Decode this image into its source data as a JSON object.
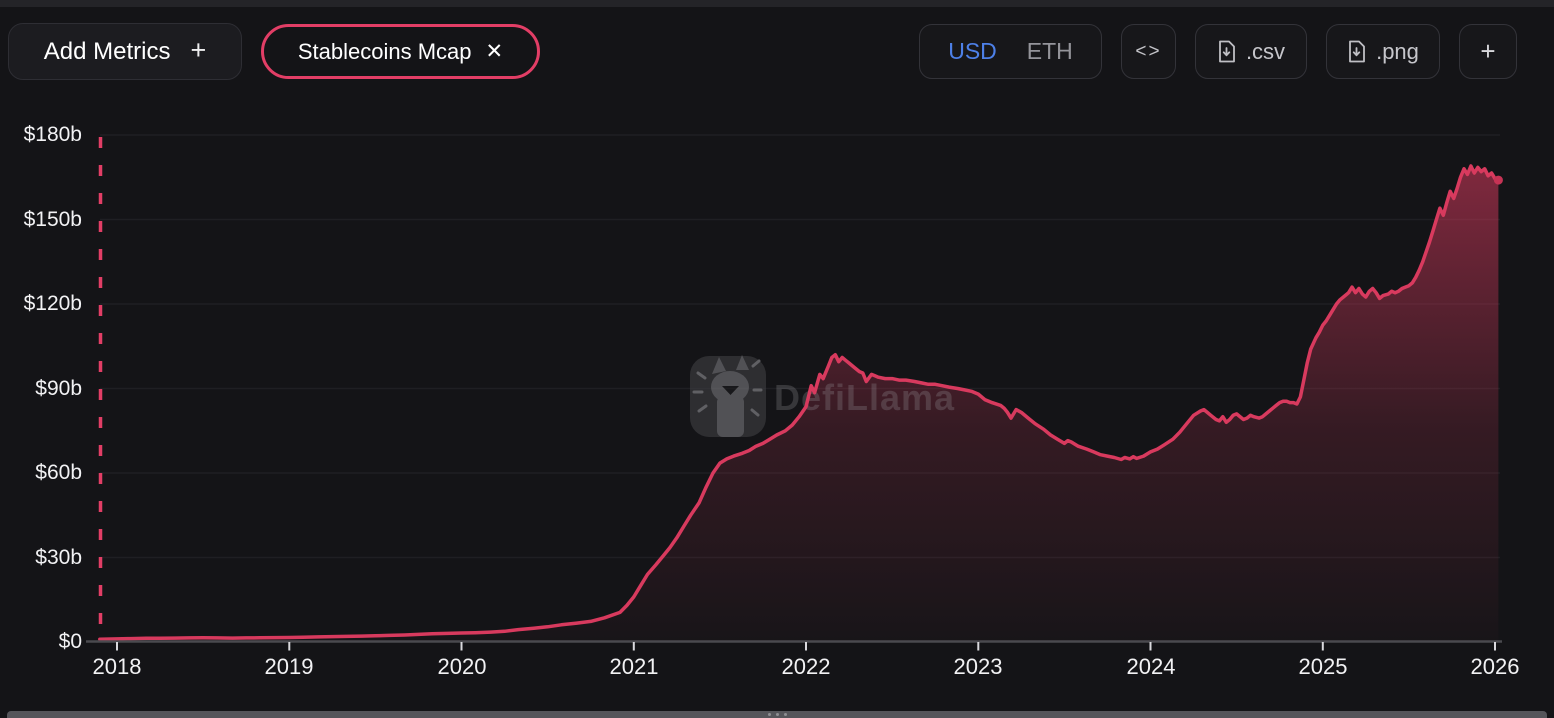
{
  "header": {
    "add_metrics": {
      "label": "Add Metrics",
      "plus": "+"
    },
    "metric_pill": {
      "label": "Stablecoins Mcap",
      "close": "✕"
    },
    "currency_toggle": {
      "options": [
        "USD",
        "ETH"
      ],
      "selected": "USD"
    },
    "embed_button": {
      "label": "<>"
    },
    "csv_button": {
      "label": ".csv"
    },
    "png_button": {
      "label": ".png"
    },
    "add_chart_button": {
      "label": "+"
    }
  },
  "watermark": {
    "text": "DefiLlama"
  },
  "colors": {
    "background": "#141417",
    "accent_pink": "#e23e66",
    "line": "#d83a5e",
    "usd_blue": "#4d80e8",
    "axis_text": "#f2f2f4",
    "muted_text": "#c6c6cb",
    "gridline": "#1f1f23",
    "axis_line": "#4a4a4f"
  },
  "chart_data": {
    "type": "area",
    "title": "Stablecoins Mcap",
    "currency": "USD",
    "legend": "none",
    "grid": true,
    "x_axis": {
      "tick_labels": [
        "2018",
        "2019",
        "2020",
        "2021",
        "2022",
        "2023",
        "2024",
        "2025",
        "2026"
      ],
      "tick_values": [
        2018,
        2019,
        2020,
        2021,
        2022,
        2023,
        2024,
        2025,
        2026
      ],
      "range": [
        2017.9,
        2026.05
      ]
    },
    "y_axis": {
      "unit": "USD billions",
      "tick_labels": [
        "$0",
        "$30b",
        "$60b",
        "$90b",
        "$120b",
        "$150b",
        "$180b"
      ],
      "tick_values": [
        0,
        30,
        60,
        90,
        120,
        150,
        180
      ],
      "range": [
        0,
        180
      ]
    },
    "series": [
      {
        "name": "Stablecoins Mcap",
        "color": "#d83a5e",
        "points": [
          [
            2017.9,
            1.0
          ],
          [
            2018,
            1.1
          ],
          [
            2018.08,
            1.2
          ],
          [
            2018.17,
            1.3
          ],
          [
            2018.25,
            1.35
          ],
          [
            2018.33,
            1.4
          ],
          [
            2018.42,
            1.45
          ],
          [
            2018.5,
            1.5
          ],
          [
            2018.58,
            1.45
          ],
          [
            2018.67,
            1.4
          ],
          [
            2018.75,
            1.45
          ],
          [
            2018.83,
            1.5
          ],
          [
            2018.92,
            1.55
          ],
          [
            2019,
            1.6
          ],
          [
            2019.08,
            1.7
          ],
          [
            2019.17,
            1.8
          ],
          [
            2019.25,
            1.9
          ],
          [
            2019.33,
            2.0
          ],
          [
            2019.42,
            2.1
          ],
          [
            2019.5,
            2.2
          ],
          [
            2019.58,
            2.35
          ],
          [
            2019.67,
            2.5
          ],
          [
            2019.75,
            2.7
          ],
          [
            2019.83,
            2.9
          ],
          [
            2019.92,
            3.05
          ],
          [
            2020,
            3.2
          ],
          [
            2020.08,
            3.3
          ],
          [
            2020.17,
            3.5
          ],
          [
            2020.25,
            3.8
          ],
          [
            2020.33,
            4.4
          ],
          [
            2020.42,
            4.9
          ],
          [
            2020.5,
            5.4
          ],
          [
            2020.58,
            6.1
          ],
          [
            2020.67,
            6.7
          ],
          [
            2020.75,
            7.3
          ],
          [
            2020.83,
            8.6
          ],
          [
            2020.92,
            10.5
          ],
          [
            2020.96,
            13
          ],
          [
            2021,
            16
          ],
          [
            2021.04,
            20
          ],
          [
            2021.08,
            24
          ],
          [
            2021.13,
            27.5
          ],
          [
            2021.17,
            30.5
          ],
          [
            2021.21,
            33.5
          ],
          [
            2021.25,
            37
          ],
          [
            2021.29,
            41
          ],
          [
            2021.33,
            45
          ],
          [
            2021.38,
            49.5
          ],
          [
            2021.42,
            55
          ],
          [
            2021.46,
            60
          ],
          [
            2021.5,
            63.5
          ],
          [
            2021.54,
            65
          ],
          [
            2021.58,
            66
          ],
          [
            2021.63,
            67
          ],
          [
            2021.67,
            68
          ],
          [
            2021.71,
            69.5
          ],
          [
            2021.75,
            70.5
          ],
          [
            2021.79,
            72
          ],
          [
            2021.83,
            73.5
          ],
          [
            2021.88,
            75
          ],
          [
            2021.92,
            77
          ],
          [
            2021.96,
            80
          ],
          [
            2022,
            83.5
          ],
          [
            2022.03,
            91
          ],
          [
            2022.05,
            88.5
          ],
          [
            2022.08,
            95
          ],
          [
            2022.1,
            93.5
          ],
          [
            2022.13,
            98
          ],
          [
            2022.15,
            101
          ],
          [
            2022.17,
            102
          ],
          [
            2022.19,
            99.5
          ],
          [
            2022.21,
            101
          ],
          [
            2022.23,
            100
          ],
          [
            2022.25,
            99
          ],
          [
            2022.28,
            97.5
          ],
          [
            2022.31,
            96
          ],
          [
            2022.33,
            95.5
          ],
          [
            2022.35,
            92.5
          ],
          [
            2022.38,
            95
          ],
          [
            2022.4,
            94.5
          ],
          [
            2022.42,
            94
          ],
          [
            2022.46,
            93.5
          ],
          [
            2022.5,
            93.5
          ],
          [
            2022.54,
            93
          ],
          [
            2022.58,
            93
          ],
          [
            2022.63,
            92.5
          ],
          [
            2022.67,
            92
          ],
          [
            2022.71,
            91.5
          ],
          [
            2022.75,
            91.5
          ],
          [
            2022.79,
            91
          ],
          [
            2022.83,
            90.5
          ],
          [
            2022.88,
            90
          ],
          [
            2022.92,
            89.5
          ],
          [
            2022.96,
            89
          ],
          [
            2023,
            88
          ],
          [
            2023.04,
            86
          ],
          [
            2023.08,
            85
          ],
          [
            2023.13,
            84
          ],
          [
            2023.15,
            83
          ],
          [
            2023.17,
            81.5
          ],
          [
            2023.19,
            79.5
          ],
          [
            2023.22,
            82.5
          ],
          [
            2023.25,
            81.5
          ],
          [
            2023.29,
            79.5
          ],
          [
            2023.33,
            77.5
          ],
          [
            2023.38,
            75.5
          ],
          [
            2023.42,
            73.5
          ],
          [
            2023.46,
            72
          ],
          [
            2023.5,
            70.5
          ],
          [
            2023.52,
            71.5
          ],
          [
            2023.54,
            71
          ],
          [
            2023.58,
            69.5
          ],
          [
            2023.63,
            68.5
          ],
          [
            2023.67,
            67.5
          ],
          [
            2023.71,
            66.5
          ],
          [
            2023.75,
            66
          ],
          [
            2023.79,
            65.5
          ],
          [
            2023.83,
            64.8
          ],
          [
            2023.85,
            65.5
          ],
          [
            2023.88,
            65
          ],
          [
            2023.9,
            65.8
          ],
          [
            2023.92,
            65.2
          ],
          [
            2023.96,
            66
          ],
          [
            2024,
            67.5
          ],
          [
            2024.04,
            68.5
          ],
          [
            2024.08,
            70
          ],
          [
            2024.13,
            72
          ],
          [
            2024.17,
            74.5
          ],
          [
            2024.21,
            77.5
          ],
          [
            2024.25,
            80.5
          ],
          [
            2024.29,
            82
          ],
          [
            2024.31,
            82.5
          ],
          [
            2024.33,
            81.5
          ],
          [
            2024.35,
            80.5
          ],
          [
            2024.38,
            79
          ],
          [
            2024.4,
            78.5
          ],
          [
            2024.42,
            80
          ],
          [
            2024.44,
            78
          ],
          [
            2024.46,
            79
          ],
          [
            2024.48,
            80.5
          ],
          [
            2024.5,
            81
          ],
          [
            2024.52,
            80
          ],
          [
            2024.54,
            79
          ],
          [
            2024.56,
            79.5
          ],
          [
            2024.58,
            80.5
          ],
          [
            2024.6,
            80
          ],
          [
            2024.63,
            79.5
          ],
          [
            2024.65,
            80
          ],
          [
            2024.67,
            81
          ],
          [
            2024.69,
            82
          ],
          [
            2024.71,
            83
          ],
          [
            2024.73,
            84
          ],
          [
            2024.75,
            85
          ],
          [
            2024.77,
            85.5
          ],
          [
            2024.79,
            85.5
          ],
          [
            2024.81,
            85
          ],
          [
            2024.83,
            85
          ],
          [
            2024.85,
            84.5
          ],
          [
            2024.87,
            87
          ],
          [
            2024.89,
            93
          ],
          [
            2024.91,
            99
          ],
          [
            2024.93,
            104
          ],
          [
            2024.96,
            108
          ],
          [
            2024.98,
            110
          ],
          [
            2025,
            112.5
          ],
          [
            2025.02,
            114
          ],
          [
            2025.04,
            116
          ],
          [
            2025.06,
            118
          ],
          [
            2025.08,
            120
          ],
          [
            2025.1,
            121.5
          ],
          [
            2025.13,
            123
          ],
          [
            2025.15,
            124
          ],
          [
            2025.17,
            126
          ],
          [
            2025.19,
            124
          ],
          [
            2025.21,
            125.5
          ],
          [
            2025.23,
            123.5
          ],
          [
            2025.25,
            122.5
          ],
          [
            2025.27,
            124.5
          ],
          [
            2025.29,
            125.5
          ],
          [
            2025.31,
            124
          ],
          [
            2025.33,
            122
          ],
          [
            2025.35,
            123
          ],
          [
            2025.38,
            123.5
          ],
          [
            2025.4,
            124.5
          ],
          [
            2025.42,
            124
          ],
          [
            2025.44,
            124.5
          ],
          [
            2025.46,
            125.5
          ],
          [
            2025.48,
            126
          ],
          [
            2025.5,
            126.5
          ],
          [
            2025.52,
            127.5
          ],
          [
            2025.54,
            129.5
          ],
          [
            2025.56,
            132
          ],
          [
            2025.58,
            135
          ],
          [
            2025.6,
            138.5
          ],
          [
            2025.62,
            142
          ],
          [
            2025.64,
            146
          ],
          [
            2025.66,
            150
          ],
          [
            2025.68,
            154
          ],
          [
            2025.7,
            151.5
          ],
          [
            2025.72,
            156
          ],
          [
            2025.74,
            160
          ],
          [
            2025.76,
            157.5
          ],
          [
            2025.78,
            161
          ],
          [
            2025.8,
            165
          ],
          [
            2025.82,
            168
          ],
          [
            2025.84,
            166
          ],
          [
            2025.86,
            169
          ],
          [
            2025.88,
            166.5
          ],
          [
            2025.9,
            168.5
          ],
          [
            2025.92,
            167
          ],
          [
            2025.94,
            168
          ],
          [
            2025.96,
            165.5
          ],
          [
            2025.98,
            166.5
          ],
          [
            2026,
            164.5
          ],
          [
            2026.02,
            164
          ]
        ]
      }
    ]
  }
}
